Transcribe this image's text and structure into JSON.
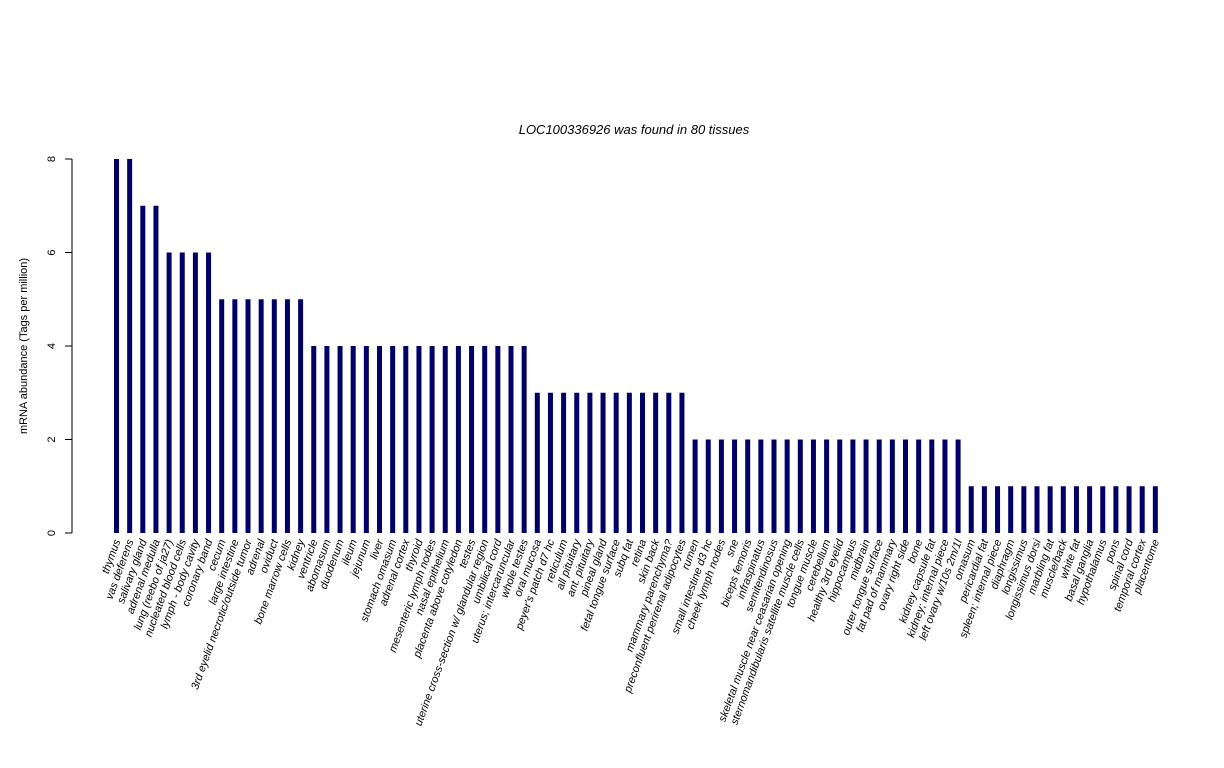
{
  "chart_data": {
    "type": "bar",
    "title": "LOC100336926  was found in  80  tissues",
    "xlabel": "",
    "ylabel": "mRNA abundance (Tags per million)",
    "ylim": [
      0,
      8
    ],
    "yticks": [
      0,
      2,
      4,
      6,
      8
    ],
    "grid": false,
    "bar_color": "#000066",
    "categories": [
      "thymus",
      "vas deferens",
      "salivary gland",
      "adrenal medulla",
      "lung (reebo of ja27)",
      "nucleated blood cells",
      "lymph - body cavity",
      "coronary band",
      "cecum",
      "large intestine",
      "3rd eyelid necrotic/outside tumor",
      "adrenal",
      "oviduct",
      "bone marrow cells",
      "kidney",
      "ventricle",
      "abomasum",
      "duodenum",
      "ileum",
      "jejunum",
      "liver",
      "stomach omasum",
      "adrenal cortex",
      "thyroid",
      "mesenteric lymph nodes",
      "nasal epithelium",
      "placenta above cotyledon",
      "testes",
      "uterine cross-section w/ glandular region",
      "umbilical cord",
      "uterus; intercaruncular",
      "whole testes",
      "oral mucosa",
      "peyer's patch d7 hc",
      "reticulum",
      "all pituitary",
      "ant. pituitary",
      "pineal gland",
      "fetal tongue surface",
      "subq fat",
      "retina",
      "skin back",
      "mammary parenchyma?",
      "preconfluent perirenal adipocytes",
      "rumen",
      "small intestine d3 hc",
      "cheek lymph nodes",
      "sne",
      "biceps femoris",
      "infraspinatus",
      "semitendinosus",
      "skeletal muscle near ceasarian opening",
      "sternomandibularis satellite muscle cells",
      "tongue muscle",
      "cerebellum",
      "healthy 3rd eyelid",
      "hippocampus",
      "midbrain",
      "outer tongue surface",
      "fat pad of mammary",
      "ovary right side",
      "bone",
      "kidney capsule fat",
      "kidney; internal piece",
      "left ovary w/10s 2m/1l",
      "omasum",
      "pericardial fat",
      "spleen; internal piece",
      "diaphragm",
      "longissimus",
      "longissimus dorsi",
      "marbling fat",
      "muscle/back",
      "white fat",
      "basal ganglia",
      "hypothalamus",
      "pons",
      "spinal cord",
      "temporal cortex",
      "placentome"
    ],
    "values": [
      8,
      8,
      7,
      7,
      6,
      6,
      6,
      6,
      5,
      5,
      5,
      5,
      5,
      5,
      5,
      4,
      4,
      4,
      4,
      4,
      4,
      4,
      4,
      4,
      4,
      4,
      4,
      4,
      4,
      4,
      4,
      4,
      3,
      3,
      3,
      3,
      3,
      3,
      3,
      3,
      3,
      3,
      3,
      3,
      2,
      2,
      2,
      2,
      2,
      2,
      2,
      2,
      2,
      2,
      2,
      2,
      2,
      2,
      2,
      2,
      2,
      2,
      2,
      2,
      2,
      1,
      1,
      1,
      1,
      1,
      1,
      1,
      1,
      1,
      1,
      1,
      1,
      1,
      1,
      1
    ]
  }
}
